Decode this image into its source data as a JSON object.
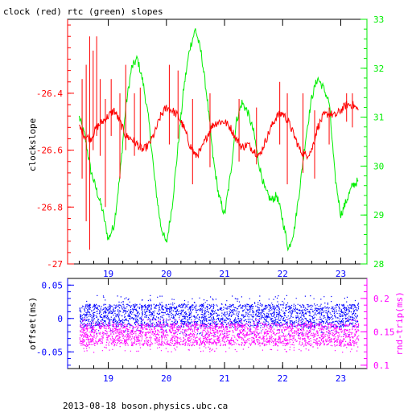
{
  "chart_data": [
    {
      "type": "line",
      "title": "clock (red) rtc (green) slopes",
      "ylabel": "clockslope",
      "x_ticks": [
        "19",
        "20",
        "21",
        "22",
        "23"
      ],
      "xlim": [
        18.3,
        23.45
      ],
      "left_axis": {
        "label": "clockslope",
        "ticks": [
          "-26.4",
          "-26.6",
          "-26.8",
          "-27"
        ],
        "tick_values": [
          -26.4,
          -26.6,
          -26.8,
          -27.0
        ],
        "ylim": [
          -27.0,
          -26.14
        ],
        "color": "#ff0000"
      },
      "right_axis": {
        "ticks": [
          "33",
          "32",
          "31",
          "30",
          "29",
          "28"
        ],
        "tick_values": [
          33,
          32,
          31,
          30,
          29,
          28
        ],
        "ylim": [
          28.0,
          33.0
        ],
        "color": "#00ee00"
      },
      "series": [
        {
          "color": "#00ee00",
          "axis": "right",
          "x": [
            18.5,
            18.6,
            18.7,
            18.8,
            18.9,
            19.0,
            19.1,
            19.2,
            19.3,
            19.4,
            19.5,
            19.6,
            19.7,
            19.8,
            19.9,
            20.0,
            20.1,
            20.2,
            20.3,
            20.4,
            20.5,
            20.6,
            20.7,
            20.8,
            20.9,
            21.0,
            21.1,
            21.2,
            21.3,
            21.4,
            21.5,
            21.6,
            21.7,
            21.8,
            21.9,
            22.0,
            22.1,
            22.2,
            22.3,
            22.4,
            22.5,
            22.6,
            22.7,
            22.8,
            22.9,
            23.0,
            23.1,
            23.2,
            23.3
          ],
          "values": [
            31.0,
            30.6,
            29.9,
            29.5,
            29.1,
            28.5,
            28.8,
            29.8,
            31.2,
            32.0,
            32.2,
            31.7,
            30.9,
            29.7,
            28.8,
            28.4,
            29.2,
            30.4,
            31.6,
            32.4,
            32.8,
            32.3,
            31.4,
            30.2,
            29.4,
            29.0,
            29.8,
            30.9,
            31.3,
            31.1,
            30.7,
            30.0,
            29.5,
            29.3,
            29.4,
            28.9,
            28.3,
            28.7,
            29.6,
            30.6,
            31.4,
            31.8,
            31.6,
            31.3,
            29.8,
            29.0,
            29.3,
            29.6,
            29.7
          ]
        },
        {
          "color": "#ff0000",
          "axis": "left",
          "x": [
            18.5,
            18.6,
            18.7,
            18.8,
            18.9,
            19.0,
            19.1,
            19.2,
            19.3,
            19.4,
            19.5,
            19.6,
            19.7,
            19.8,
            19.9,
            20.0,
            20.1,
            20.2,
            20.3,
            20.4,
            20.5,
            20.6,
            20.7,
            20.8,
            20.9,
            21.0,
            21.1,
            21.2,
            21.3,
            21.4,
            21.5,
            21.6,
            21.7,
            21.8,
            21.9,
            22.0,
            22.1,
            22.2,
            22.3,
            22.4,
            22.5,
            22.6,
            22.7,
            22.8,
            22.9,
            23.0,
            23.1,
            23.2,
            23.3
          ],
          "values": [
            -26.52,
            -26.55,
            -26.56,
            -26.52,
            -26.5,
            -26.48,
            -26.46,
            -26.5,
            -26.55,
            -26.56,
            -26.58,
            -26.6,
            -26.58,
            -26.54,
            -26.48,
            -26.45,
            -26.46,
            -26.48,
            -26.52,
            -26.58,
            -26.62,
            -26.6,
            -26.55,
            -26.51,
            -26.5,
            -26.5,
            -26.52,
            -26.56,
            -26.59,
            -26.58,
            -26.6,
            -26.62,
            -26.57,
            -26.52,
            -26.48,
            -26.47,
            -26.5,
            -26.55,
            -26.6,
            -26.62,
            -26.6,
            -26.52,
            -26.48,
            -26.47,
            -26.48,
            -26.46,
            -26.44,
            -26.44,
            -26.46
          ]
        }
      ],
      "spikes": [
        {
          "x": 18.55,
          "from": -26.35,
          "to": -26.7
        },
        {
          "x": 18.62,
          "from": -26.3,
          "to": -26.85
        },
        {
          "x": 18.68,
          "from": -26.2,
          "to": -26.95
        },
        {
          "x": 18.74,
          "from": -26.25,
          "to": -26.6
        },
        {
          "x": 18.8,
          "from": -26.2,
          "to": -26.55
        },
        {
          "x": 18.86,
          "from": -26.35,
          "to": -26.62
        },
        {
          "x": 18.95,
          "from": -26.42,
          "to": -26.8
        },
        {
          "x": 19.05,
          "from": -26.35,
          "to": -26.55
        },
        {
          "x": 19.2,
          "from": -26.4,
          "to": -26.7
        },
        {
          "x": 19.3,
          "from": -26.3,
          "to": -26.6
        },
        {
          "x": 19.45,
          "from": -26.4,
          "to": -26.62
        },
        {
          "x": 19.55,
          "from": -26.38,
          "to": -26.6
        },
        {
          "x": 20.05,
          "from": -26.3,
          "to": -26.58
        },
        {
          "x": 20.2,
          "from": -26.32,
          "to": -26.56
        },
        {
          "x": 20.45,
          "from": -26.42,
          "to": -26.72
        },
        {
          "x": 20.75,
          "from": -26.4,
          "to": -26.66
        },
        {
          "x": 21.25,
          "from": -26.42,
          "to": -26.64
        },
        {
          "x": 21.55,
          "from": -26.45,
          "to": -26.65
        },
        {
          "x": 21.95,
          "from": -26.36,
          "to": -26.58
        },
        {
          "x": 22.08,
          "from": -26.4,
          "to": -26.72
        },
        {
          "x": 22.35,
          "from": -26.4,
          "to": -26.68
        },
        {
          "x": 22.55,
          "from": -26.46,
          "to": -26.7
        },
        {
          "x": 22.8,
          "from": -26.45,
          "to": -26.58
        },
        {
          "x": 23.1,
          "from": -26.4,
          "to": -26.5
        },
        {
          "x": 23.2,
          "from": -26.4,
          "to": -26.52
        }
      ],
      "grid": false
    },
    {
      "type": "scatter",
      "ylabel": "offset(ms)",
      "y2label": "rnd-trip(ms)",
      "x_ticks": [
        "19",
        "20",
        "21",
        "22",
        "23"
      ],
      "xlim": [
        18.3,
        23.45
      ],
      "left_axis": {
        "ticks": [
          "0.05",
          "0",
          "-0.05"
        ],
        "tick_values": [
          0.05,
          0.0,
          -0.05
        ],
        "ylim": [
          -0.075,
          0.06
        ],
        "color": "#0000ff"
      },
      "right_axis": {
        "ticks": [
          "0.2",
          "0.15",
          "0.1"
        ],
        "tick_values": [
          0.2,
          0.15,
          0.1
        ],
        "ylim": [
          0.095,
          0.23
        ],
        "color": "#ff00ff"
      },
      "series": [
        {
          "color": "#0000ff",
          "axis": "left",
          "x_range": [
            18.5,
            23.3
          ],
          "band_center": 0.0,
          "band_core": [
            -0.012,
            0.022
          ],
          "band_outer": [
            -0.025,
            0.035
          ]
        },
        {
          "color": "#ff00ff",
          "axis": "right",
          "x_range": [
            18.5,
            23.3
          ],
          "band_center": 0.15,
          "band_core": [
            0.13,
            0.163
          ],
          "band_outer": [
            0.12,
            0.17
          ]
        }
      ],
      "grid": false
    }
  ],
  "footer": {
    "text": "2013-08-18 boson.physics.ubc.ca"
  }
}
